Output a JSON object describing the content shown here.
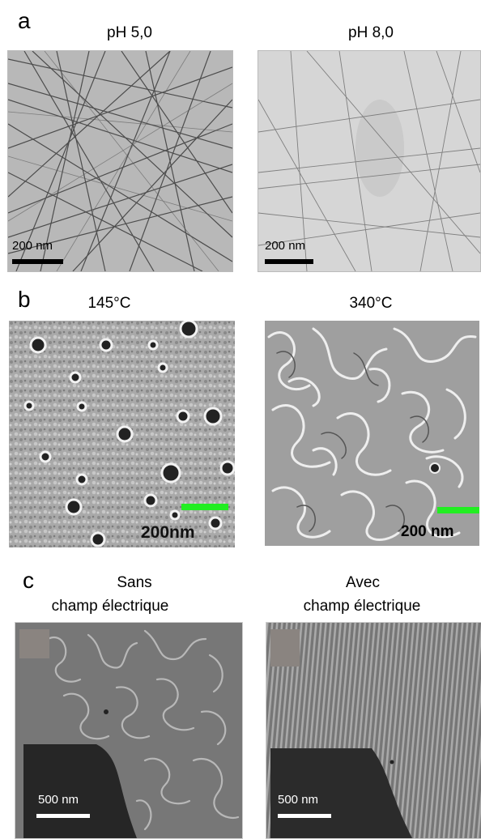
{
  "figure": {
    "a": {
      "letter": "a",
      "left": {
        "title": "pH 5,0",
        "scale_label": "200 nm"
      },
      "right": {
        "title": "pH 8,0",
        "scale_label": "200 nm"
      }
    },
    "b": {
      "letter": "b",
      "left": {
        "title": "145°C",
        "scale_label": "200nm"
      },
      "right": {
        "title": "340°C",
        "scale_label": "200 nm"
      }
    },
    "c": {
      "letter": "c",
      "left": {
        "title_line1": "Sans",
        "title_line2": "champ électrique",
        "scale_label": "500 nm"
      },
      "right": {
        "title_line1": "Avec",
        "title_line2": "champ électrique",
        "scale_label": "500 nm"
      }
    }
  },
  "colors": {
    "scale_bar_dark": "#000000",
    "scale_bar_green": "#22ee22",
    "scale_bar_white": "#ffffff"
  }
}
